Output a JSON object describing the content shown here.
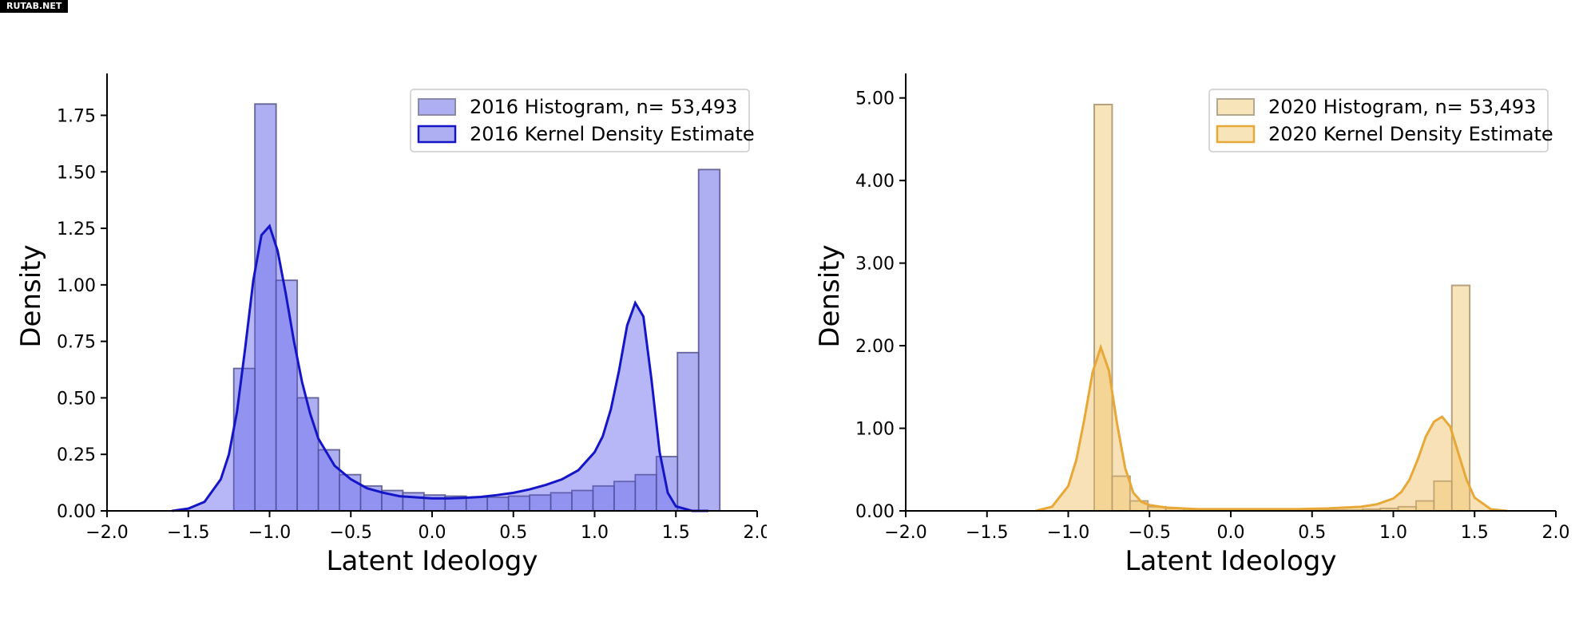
{
  "watermark": "RUTAB.NET",
  "chart_data": [
    {
      "type": "bar",
      "xlabel": "Latent Ideology",
      "ylabel": "Density",
      "xlim": [
        -2.0,
        2.0
      ],
      "ylim": [
        0,
        1.9
      ],
      "xticks": [
        -2.0,
        -1.5,
        -1.0,
        -0.5,
        0.0,
        0.5,
        1.0,
        1.5,
        2.0
      ],
      "xtick_labels": [
        "−2.0",
        "−1.5",
        "−1.0",
        "−0.5",
        "0.0",
        "0.5",
        "1.0",
        "1.5",
        "2.0"
      ],
      "yticks": [
        0,
        0.25,
        0.5,
        0.75,
        1.0,
        1.25,
        1.5,
        1.75
      ],
      "ytick_labels": [
        "0.00",
        "0.25",
        "0.50",
        "0.75",
        "1.00",
        "1.25",
        "1.50",
        "1.75"
      ],
      "legend_position": "top-right",
      "legend": [
        "2016 Histogram, n= 53,493",
        "2016 Kernel Density Estimate"
      ],
      "colors": {
        "hist_fill": "#aeaef2",
        "hist_edge": "#8a8aa8",
        "kde_fill": "#7b7bf0",
        "kde_line": "#1515c8",
        "kde_edge_dark": "#4a4a9a"
      },
      "histogram": {
        "name": "2016 Histogram, n= 53,493",
        "bin_start": -1.22,
        "bin_width": 0.13,
        "values": [
          0.63,
          1.8,
          1.02,
          0.5,
          0.27,
          0.16,
          0.11,
          0.09,
          0.08,
          0.07,
          0.065,
          0.06,
          0.06,
          0.065,
          0.07,
          0.08,
          0.09,
          0.11,
          0.13,
          0.16,
          0.24,
          0.7,
          1.51
        ]
      },
      "kde": {
        "name": "2016 Kernel Density Estimate",
        "x": [
          -1.6,
          -1.5,
          -1.4,
          -1.3,
          -1.25,
          -1.2,
          -1.15,
          -1.1,
          -1.05,
          -1.0,
          -0.95,
          -0.9,
          -0.85,
          -0.8,
          -0.75,
          -0.7,
          -0.6,
          -0.5,
          -0.4,
          -0.3,
          -0.2,
          -0.1,
          0.0,
          0.1,
          0.2,
          0.3,
          0.4,
          0.5,
          0.6,
          0.7,
          0.8,
          0.9,
          1.0,
          1.05,
          1.1,
          1.15,
          1.2,
          1.25,
          1.3,
          1.35,
          1.4,
          1.45,
          1.5,
          1.6,
          1.7
        ],
        "y": [
          0.0,
          0.01,
          0.04,
          0.14,
          0.25,
          0.44,
          0.72,
          1.02,
          1.22,
          1.26,
          1.15,
          0.96,
          0.75,
          0.57,
          0.43,
          0.32,
          0.2,
          0.14,
          0.1,
          0.08,
          0.065,
          0.06,
          0.055,
          0.055,
          0.058,
          0.062,
          0.07,
          0.08,
          0.095,
          0.115,
          0.14,
          0.18,
          0.26,
          0.33,
          0.45,
          0.62,
          0.82,
          0.92,
          0.86,
          0.58,
          0.26,
          0.08,
          0.02,
          0.0,
          0.0
        ]
      }
    },
    {
      "type": "bar",
      "xlabel": "Latent Ideology",
      "ylabel": "Density",
      "xlim": [
        -2.0,
        2.0
      ],
      "ylim": [
        0,
        5.2
      ],
      "xticks": [
        -2.0,
        -1.5,
        -1.0,
        -0.5,
        0.0,
        0.5,
        1.0,
        1.5,
        2.0
      ],
      "xtick_labels": [
        "−2.0",
        "−1.5",
        "−1.0",
        "−0.5",
        "0.0",
        "0.5",
        "1.0",
        "1.5",
        "2.0"
      ],
      "yticks": [
        0,
        1,
        2,
        3,
        4,
        5
      ],
      "ytick_labels": [
        "0.00",
        "1.00",
        "2.00",
        "3.00",
        "4.00",
        "5.00"
      ],
      "legend_position": "top-right",
      "legend": [
        "2020 Histogram, n= 53,493",
        "2020 Kernel Density Estimate"
      ],
      "colors": {
        "hist_fill": "#f7e4b8",
        "hist_edge": "#b3a890",
        "kde_fill": "#f2c97a",
        "kde_line": "#e8a838",
        "kde_edge_dark": "#b89a6a"
      },
      "histogram": {
        "name": "2020 Histogram, n= 53,493",
        "bin_start": -0.84,
        "bin_width": 0.11,
        "values": [
          4.92,
          0.42,
          0.12,
          0.05,
          0.03,
          0.02,
          0.015,
          0.01,
          0.01,
          0.01,
          0.01,
          0.01,
          0.01,
          0.01,
          0.01,
          0.02,
          0.03,
          0.05,
          0.12,
          0.36,
          2.73
        ]
      },
      "kde": {
        "name": "2020 Kernel Density Estimate",
        "x": [
          -1.2,
          -1.1,
          -1.0,
          -0.95,
          -0.9,
          -0.85,
          -0.8,
          -0.75,
          -0.7,
          -0.65,
          -0.6,
          -0.55,
          -0.5,
          -0.4,
          -0.3,
          -0.2,
          0.0,
          0.2,
          0.4,
          0.6,
          0.8,
          0.9,
          1.0,
          1.05,
          1.1,
          1.15,
          1.2,
          1.25,
          1.3,
          1.35,
          1.4,
          1.45,
          1.5,
          1.6,
          1.7
        ],
        "y": [
          0.0,
          0.05,
          0.3,
          0.62,
          1.12,
          1.68,
          1.98,
          1.7,
          1.06,
          0.52,
          0.22,
          0.11,
          0.07,
          0.04,
          0.03,
          0.02,
          0.02,
          0.02,
          0.02,
          0.03,
          0.05,
          0.08,
          0.15,
          0.23,
          0.38,
          0.62,
          0.9,
          1.08,
          1.14,
          1.02,
          0.7,
          0.38,
          0.16,
          0.02,
          0.0
        ]
      }
    }
  ]
}
